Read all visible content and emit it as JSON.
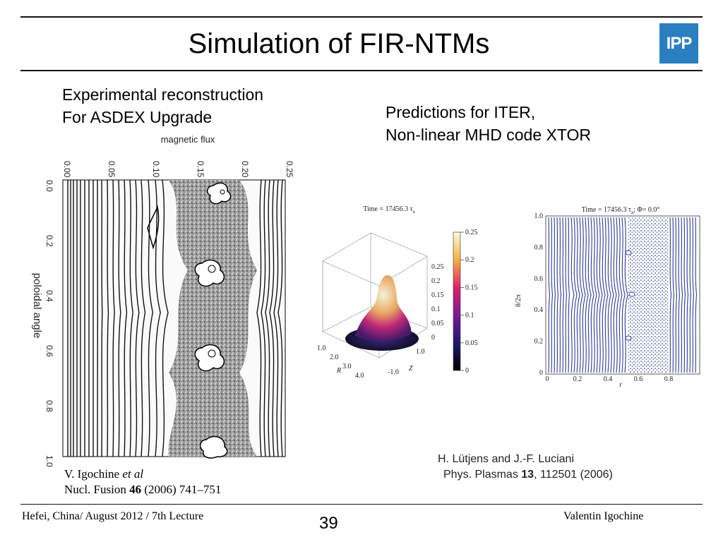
{
  "slide": {
    "title": "Simulation of FIR-NTMs",
    "logo_text": "IPP",
    "left_caption": {
      "line1": "Experimental reconstruction",
      "line2": "For ASDEX Upgrade"
    },
    "right_caption": {
      "line1": "Predictions for ITER,",
      "line2": "Non-linear MHD code XTOR"
    },
    "left_figure": {
      "top_label": "magnetic flux",
      "top_ticks": [
        "0.00",
        "0.05",
        "0.10",
        "0.15",
        "0.20",
        "0.25"
      ],
      "side_label": "poloidal angle",
      "side_ticks": [
        "0.0",
        "0.2",
        "0.4",
        "0.6",
        "0.8",
        "1.0"
      ]
    },
    "left_ref": {
      "author": "V. Igochine",
      "etal": "et al",
      "journal": "Nucl. Fusion",
      "volume": "46",
      "rest": "(2006) 741–751"
    },
    "fig3d": {
      "time_label": "Time = 17456.3 τ",
      "time_sub": "a",
      "z_ticks": [
        "0.25",
        "0.2",
        "0.15",
        "0.1",
        "0.05",
        "0"
      ],
      "cbar_ticks": [
        "0.25",
        "0.2",
        "0.15",
        "0.1",
        "0.05",
        "0"
      ],
      "r_ticks": [
        "1.0",
        "2.0",
        "3.0",
        "4.0"
      ],
      "r_label": "R",
      "z_axis_ticks": [
        "1.0",
        "-1.0"
      ],
      "z_label": "Z"
    },
    "poincare": {
      "time_label": "Time = 17456.3 τ",
      "time_sub": "a",
      "phi_label": "; Φ= 0.0°",
      "y_label": "θ/2π",
      "x_label": "r",
      "y_ticks": [
        "1.0",
        "0.8",
        "0.6",
        "0.4",
        "0.2",
        "0"
      ],
      "x_ticks": [
        "0",
        "0.2",
        "0.4",
        "0.6",
        "0.8"
      ]
    },
    "right_ref": {
      "line1": "H. Lütjens and J.-F. Luciani",
      "journal": "Phys. Plasmas",
      "volume": "13",
      "rest": ", 112501  (2006)"
    },
    "footer": {
      "left": "Hefei, China/ August 2012 / 7th Lecture",
      "page": "39",
      "right": "Valentin Igochine"
    }
  }
}
